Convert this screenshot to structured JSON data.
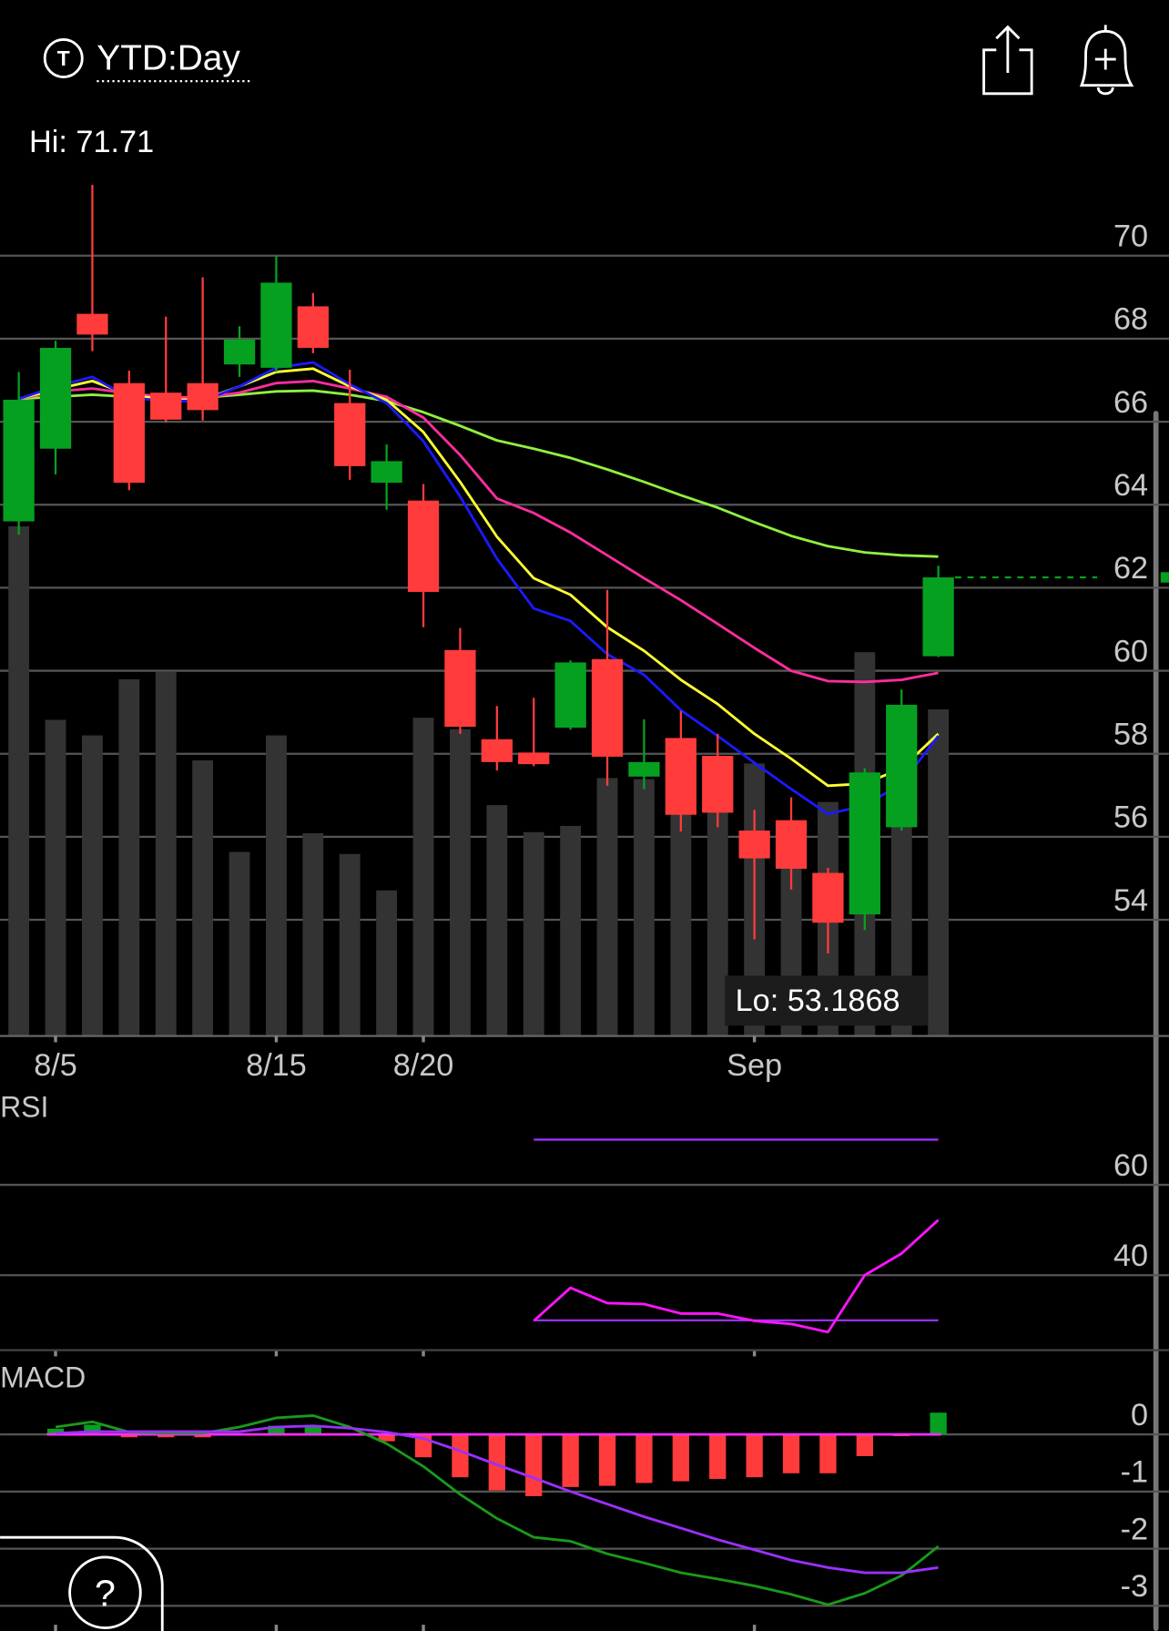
{
  "header": {
    "range": "YTD:Day",
    "icon": "T"
  },
  "help": "?",
  "chart_data": [
    {
      "type": "candlestick",
      "annotations": [
        "Hi: 71.71",
        "Lo: 53.1868"
      ],
      "categories": [
        null,
        "8/5",
        null,
        null,
        null,
        null,
        null,
        "8/15",
        null,
        null,
        null,
        "8/20",
        null,
        null,
        null,
        null,
        null,
        null,
        null,
        null,
        "Sep",
        null,
        null,
        null,
        null,
        null
      ],
      "open": [
        63.6,
        65.35,
        68.6,
        66.93,
        66.7,
        66.93,
        67.38,
        67.3,
        68.78,
        66.45,
        64.53,
        64.1,
        60.5,
        58.35,
        58.03,
        58.63,
        60.28,
        57.45,
        58.38,
        57.95,
        56.15,
        56.4,
        55.13,
        54.13,
        56.23,
        60.35
      ],
      "high": [
        67.2,
        67.95,
        71.71,
        67.23,
        68.53,
        69.48,
        68.3,
        70.0,
        69.1,
        67.25,
        65.45,
        64.5,
        61.03,
        59.15,
        59.35,
        60.25,
        61.95,
        58.83,
        59.03,
        58.48,
        56.65,
        56.95,
        55.25,
        57.65,
        59.55,
        62.53
      ],
      "low": [
        63.28,
        64.73,
        67.7,
        64.35,
        65.98,
        66.03,
        67.08,
        67.2,
        67.65,
        64.6,
        63.88,
        61.05,
        58.48,
        57.6,
        57.7,
        58.58,
        57.23,
        57.15,
        56.13,
        56.23,
        53.53,
        54.73,
        53.19,
        53.75,
        56.15,
        60.33
      ],
      "close": [
        66.53,
        67.78,
        68.1,
        64.53,
        66.05,
        66.28,
        67.98,
        69.35,
        67.78,
        64.93,
        65.05,
        61.9,
        58.65,
        57.8,
        57.75,
        60.2,
        57.93,
        57.8,
        56.53,
        56.58,
        55.48,
        55.23,
        53.93,
        57.55,
        59.18,
        62.25
      ],
      "volume": [
        490,
        304,
        289,
        343,
        350,
        265,
        177,
        289,
        195,
        175,
        140,
        306,
        295,
        222,
        196,
        202,
        248,
        247,
        225,
        215,
        262,
        205,
        225,
        369,
        205,
        314
      ],
      "series": [
        {
          "color": "#90f040",
          "values": [
            66.55,
            66.6,
            66.65,
            66.6,
            66.58,
            66.58,
            66.65,
            66.73,
            66.75,
            66.65,
            66.5,
            66.23,
            65.9,
            65.55,
            65.35,
            65.13,
            64.85,
            64.55,
            64.23,
            63.93,
            63.58,
            63.25,
            63.0,
            62.85,
            62.78,
            62.75
          ]
        },
        {
          "color": "#ff2d9e",
          "values": [
            66.55,
            66.73,
            66.8,
            66.68,
            66.6,
            66.58,
            66.7,
            66.93,
            66.98,
            66.8,
            66.6,
            66.1,
            65.2,
            64.15,
            63.8,
            63.33,
            62.78,
            62.23,
            61.7,
            61.13,
            60.55,
            60.0,
            59.75,
            59.73,
            59.78,
            59.95
          ]
        },
        {
          "color": "#ffff33",
          "values": [
            66.55,
            66.78,
            66.98,
            66.65,
            66.53,
            66.53,
            66.85,
            67.2,
            67.28,
            66.85,
            66.53,
            65.75,
            64.55,
            63.23,
            62.23,
            61.83,
            61.05,
            60.48,
            59.78,
            59.2,
            58.48,
            57.88,
            57.23,
            57.28,
            57.65,
            58.48
          ]
        },
        {
          "color": "#1a1aff",
          "values": [
            66.55,
            66.85,
            67.08,
            66.58,
            66.5,
            66.5,
            66.85,
            67.3,
            67.43,
            66.9,
            66.45,
            65.53,
            64.2,
            62.7,
            61.5,
            61.2,
            60.4,
            59.9,
            59.05,
            58.43,
            57.78,
            57.15,
            56.55,
            56.75,
            57.28,
            58.43
          ]
        }
      ],
      "up_color": "#06a020",
      "down_color": "#ff3b3b",
      "volume_color": "#333333",
      "ylim": [
        51.2,
        71.75
      ],
      "yticks": [
        70,
        68,
        66,
        64,
        62,
        60,
        58,
        56,
        54
      ],
      "grid": true
    },
    {
      "type": "line",
      "title": "RSI",
      "series": [
        {
          "color": "#ff14ff",
          "values": [
            null,
            null,
            null,
            null,
            null,
            null,
            null,
            null,
            null,
            null,
            null,
            null,
            null,
            null,
            29.9,
            37.2,
            33.8,
            33.6,
            31.5,
            31.5,
            29.9,
            29.2,
            27.4,
            40.0,
            44.8,
            52.2
          ]
        }
      ],
      "levels": [
        70,
        30
      ],
      "level_color": "#9b30ff",
      "ylim": [
        23.4,
        73.6
      ],
      "yticks": [
        60,
        40
      ],
      "grid": true
    },
    {
      "type": "bar",
      "title": "MACD",
      "values": [
        null,
        0.1,
        0.17,
        -0.05,
        -0.05,
        -0.05,
        0.0,
        0.15,
        0.15,
        0.0,
        -0.12,
        -0.4,
        -0.75,
        -0.98,
        -1.08,
        -0.92,
        -0.9,
        -0.85,
        -0.82,
        -0.78,
        -0.75,
        -0.68,
        -0.68,
        -0.38,
        -0.03,
        0.38
      ],
      "up_color": "#06a020",
      "down_color": "#ff3b3b",
      "series": [
        {
          "color": "#1a9a1a",
          "values": [
            null,
            0.13,
            0.22,
            0.04,
            0.02,
            0.02,
            0.13,
            0.29,
            0.33,
            0.13,
            -0.16,
            -0.56,
            -1.05,
            -1.47,
            -1.8,
            -1.87,
            -2.09,
            -2.25,
            -2.42,
            -2.53,
            -2.65,
            -2.8,
            -2.98,
            -2.78,
            -2.47,
            -1.96
          ]
        },
        {
          "color": "#9b30ff",
          "values": [
            null,
            0.02,
            0.05,
            0.05,
            0.05,
            0.05,
            0.05,
            0.13,
            0.15,
            0.11,
            0.04,
            -0.07,
            -0.29,
            -0.53,
            -0.76,
            -1.0,
            -1.22,
            -1.44,
            -1.64,
            -1.84,
            -2.02,
            -2.2,
            -2.33,
            -2.42,
            -2.42,
            -2.33
          ]
        }
      ],
      "ylim": [
        -3.44,
        0.71
      ],
      "yticks": [
        0,
        -1,
        -2,
        -3
      ],
      "grid": true
    }
  ]
}
